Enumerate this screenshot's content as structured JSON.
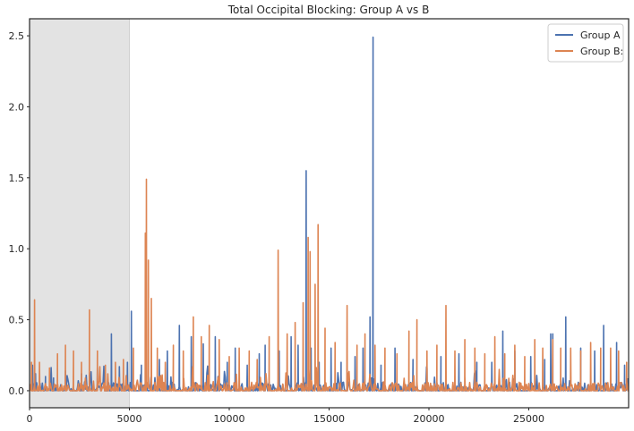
{
  "chart_data": {
    "type": "line",
    "title": "Total Occipital Blocking: Group A vs B",
    "xlabel": "",
    "ylabel": "",
    "xlim": [
      0,
      30000
    ],
    "ylim": [
      -0.12,
      2.62
    ],
    "xticks": [
      0,
      5000,
      10000,
      15000,
      20000,
      25000
    ],
    "yticks": [
      0.0,
      0.5,
      1.0,
      1.5,
      2.0,
      2.5
    ],
    "xtick_labels": [
      "0",
      "5000",
      "10000",
      "15000",
      "20000",
      "25000"
    ],
    "ytick_labels": [
      "0.0",
      "0.5",
      "1.0",
      "1.5",
      "2.0",
      "2.5"
    ],
    "shaded_region": {
      "x": [
        0,
        5000
      ],
      "color": "#e3e3e3"
    },
    "grid": false,
    "legend": {
      "position": "top-right"
    },
    "series": [
      {
        "name": "Group A",
        "color": "#4c72b0",
        "baseline": 0.0,
        "peaks": [
          [
            150,
            0.18
          ],
          [
            300,
            0.12
          ],
          [
            800,
            0.1
          ],
          [
            1200,
            0.09
          ],
          [
            1800,
            0.14
          ],
          [
            2600,
            0.12
          ],
          [
            3400,
            0.16
          ],
          [
            4100,
            0.4
          ],
          [
            4500,
            0.17
          ],
          [
            4900,
            0.2
          ],
          [
            5100,
            0.56
          ],
          [
            5600,
            0.18
          ],
          [
            6500,
            0.22
          ],
          [
            6900,
            0.28
          ],
          [
            7500,
            0.46
          ],
          [
            8100,
            0.38
          ],
          [
            8700,
            0.33
          ],
          [
            9300,
            0.38
          ],
          [
            9900,
            0.2
          ],
          [
            10300,
            0.3
          ],
          [
            10900,
            0.18
          ],
          [
            11500,
            0.26
          ],
          [
            11800,
            0.32
          ],
          [
            12500,
            0.28
          ],
          [
            13100,
            0.38
          ],
          [
            13450,
            0.32
          ],
          [
            13850,
            1.55
          ],
          [
            14100,
            0.3
          ],
          [
            14500,
            0.2
          ],
          [
            15100,
            0.3
          ],
          [
            15600,
            0.2
          ],
          [
            16300,
            0.24
          ],
          [
            16700,
            0.3
          ],
          [
            17050,
            0.52
          ],
          [
            17200,
            2.49
          ],
          [
            17600,
            0.18
          ],
          [
            18300,
            0.3
          ],
          [
            19200,
            0.22
          ],
          [
            19900,
            0.16
          ],
          [
            20600,
            0.24
          ],
          [
            21500,
            0.26
          ],
          [
            22400,
            0.2
          ],
          [
            23150,
            0.2
          ],
          [
            23700,
            0.42
          ],
          [
            24300,
            0.28
          ],
          [
            25100,
            0.24
          ],
          [
            25800,
            0.22
          ],
          [
            26100,
            0.4
          ],
          [
            26200,
            0.4
          ],
          [
            26850,
            0.52
          ],
          [
            27600,
            0.3
          ],
          [
            28300,
            0.28
          ],
          [
            28750,
            0.46
          ],
          [
            29400,
            0.34
          ],
          [
            29800,
            0.18
          ]
        ]
      },
      {
        "name": "Group B:",
        "color": "#dd8452",
        "baseline": 0.0,
        "peaks": [
          [
            100,
            0.2
          ],
          [
            250,
            0.64
          ],
          [
            500,
            0.2
          ],
          [
            1000,
            0.16
          ],
          [
            1400,
            0.26
          ],
          [
            1800,
            0.32
          ],
          [
            2200,
            0.28
          ],
          [
            2600,
            0.2
          ],
          [
            3000,
            0.57
          ],
          [
            3400,
            0.28
          ],
          [
            3800,
            0.18
          ],
          [
            4300,
            0.2
          ],
          [
            4700,
            0.22
          ],
          [
            5200,
            0.3
          ],
          [
            5800,
            1.11
          ],
          [
            5850,
            1.49
          ],
          [
            5950,
            0.92
          ],
          [
            6100,
            0.65
          ],
          [
            6400,
            0.3
          ],
          [
            6800,
            0.2
          ],
          [
            7200,
            0.32
          ],
          [
            7700,
            0.28
          ],
          [
            8200,
            0.52
          ],
          [
            8600,
            0.38
          ],
          [
            9000,
            0.46
          ],
          [
            9500,
            0.36
          ],
          [
            10000,
            0.24
          ],
          [
            10500,
            0.3
          ],
          [
            11000,
            0.28
          ],
          [
            11400,
            0.22
          ],
          [
            12000,
            0.38
          ],
          [
            12450,
            0.99
          ],
          [
            12900,
            0.4
          ],
          [
            13300,
            0.48
          ],
          [
            13700,
            0.62
          ],
          [
            13950,
            1.08
          ],
          [
            14050,
            0.98
          ],
          [
            14300,
            0.75
          ],
          [
            14450,
            1.17
          ],
          [
            14800,
            0.44
          ],
          [
            15300,
            0.34
          ],
          [
            15900,
            0.6
          ],
          [
            16400,
            0.32
          ],
          [
            16800,
            0.4
          ],
          [
            17300,
            0.32
          ],
          [
            17800,
            0.3
          ],
          [
            18400,
            0.26
          ],
          [
            19000,
            0.42
          ],
          [
            19400,
            0.5
          ],
          [
            19900,
            0.28
          ],
          [
            20400,
            0.32
          ],
          [
            20850,
            0.6
          ],
          [
            21300,
            0.28
          ],
          [
            21800,
            0.36
          ],
          [
            22300,
            0.3
          ],
          [
            22800,
            0.26
          ],
          [
            23300,
            0.38
          ],
          [
            23800,
            0.26
          ],
          [
            24300,
            0.32
          ],
          [
            24800,
            0.24
          ],
          [
            25300,
            0.36
          ],
          [
            25700,
            0.3
          ],
          [
            26200,
            0.36
          ],
          [
            26600,
            0.3
          ],
          [
            27100,
            0.3
          ],
          [
            27600,
            0.28
          ],
          [
            28100,
            0.34
          ],
          [
            28600,
            0.3
          ],
          [
            29100,
            0.3
          ],
          [
            29500,
            0.28
          ],
          [
            29900,
            0.2
          ]
        ]
      }
    ]
  }
}
